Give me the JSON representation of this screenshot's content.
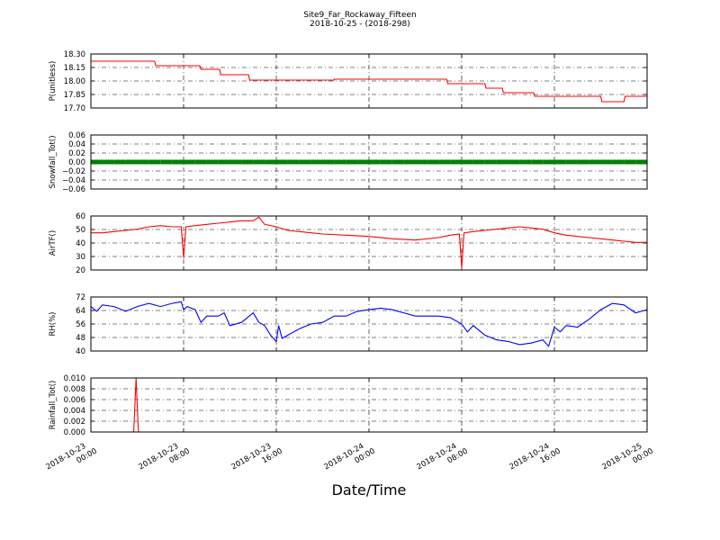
{
  "figure": {
    "title": "Site9_Far_Rockaway_Fifteen",
    "subtitle": "2018-10-25 - (2018-298)",
    "xlabel": "Date/Time"
  },
  "chart_data": [
    {
      "type": "line",
      "ylabel": "P(unitless)",
      "ylim": [
        17.7,
        18.3
      ],
      "yticks": [
        "18.30",
        "18.15",
        "18.00",
        "17.85",
        "17.70"
      ],
      "xlim": [
        0,
        48
      ],
      "xticks": [
        [
          "2018-10-23",
          "00:00"
        ],
        [
          "2018-10-23",
          "08:00"
        ],
        [
          "2018-10-23",
          "16:00"
        ],
        [
          "2018-10-24",
          "00:00"
        ],
        [
          "2018-10-24",
          "08:00"
        ],
        [
          "2018-10-24",
          "16:00"
        ],
        [
          "2018-10-25",
          "00:00"
        ]
      ],
      "grid": true,
      "color": "#ff0000",
      "x": [
        0,
        5.5,
        5.6,
        9.4,
        9.5,
        11.1,
        11.2,
        13.6,
        13.7,
        21,
        21,
        30.7,
        30.8,
        34,
        34.1,
        35.5,
        35.6,
        38.2,
        38.3,
        44.0,
        44.1,
        46.0,
        46.1,
        48
      ],
      "y": [
        18.22,
        18.22,
        18.17,
        18.17,
        18.13,
        18.13,
        18.07,
        18.07,
        18.01,
        18.01,
        18.02,
        18.02,
        17.97,
        17.97,
        17.92,
        17.92,
        17.87,
        17.87,
        17.83,
        17.83,
        17.77,
        17.77,
        17.83,
        17.83
      ]
    },
    {
      "type": "scatter",
      "ylabel": "Snowfall_Tot()",
      "ylim": [
        -0.06,
        0.06
      ],
      "yticks": [
        "0.06",
        "0.04",
        "0.02",
        "0.00",
        "−0.02",
        "−0.04",
        "−0.06"
      ],
      "xlim": [
        0,
        48
      ],
      "grid": true,
      "color": "#008000",
      "x": [
        0,
        1,
        2,
        3,
        4,
        5,
        6,
        7,
        8,
        9,
        10,
        11,
        12,
        13,
        14,
        15,
        16,
        17,
        18,
        19,
        20,
        21,
        22,
        23,
        24,
        25,
        26,
        27,
        28,
        29,
        30,
        31,
        32,
        33,
        34,
        35,
        36,
        37,
        38,
        39,
        40,
        41,
        42,
        43,
        44,
        45,
        46,
        47,
        48
      ],
      "y": [
        0,
        0,
        0,
        0,
        0,
        0,
        0,
        0,
        0,
        0,
        0,
        0,
        0,
        0,
        0,
        0,
        0,
        0,
        0,
        0,
        0,
        0,
        0,
        0,
        0,
        0,
        0,
        0,
        0,
        0,
        0,
        0,
        0,
        0,
        0,
        0,
        0,
        0,
        0,
        0,
        0,
        0,
        0,
        0,
        0,
        0,
        0,
        0,
        0
      ]
    },
    {
      "type": "line",
      "ylabel": "AirTF()",
      "ylim": [
        20,
        65
      ],
      "yticks": [
        "60",
        "50",
        "40",
        "30",
        "20"
      ],
      "xlim": [
        0,
        48
      ],
      "grid": true,
      "color": "#ff0000",
      "x": [
        0,
        1,
        2,
        3,
        4,
        5,
        6,
        7,
        7.8,
        8,
        8.2,
        9,
        10,
        11,
        12,
        13,
        14,
        14.5,
        15,
        16,
        17,
        18,
        19,
        20,
        22,
        24,
        26,
        28,
        30,
        31,
        31.8,
        32,
        32.2,
        33,
        34,
        35,
        36,
        37,
        38,
        39,
        40,
        41,
        42,
        43,
        44,
        45,
        46,
        47,
        48
      ],
      "y": [
        51,
        51,
        52,
        53,
        54,
        56,
        57,
        56,
        56,
        30,
        56,
        57,
        58,
        59,
        60,
        61,
        61,
        64,
        58,
        56,
        53,
        52,
        51,
        50,
        49,
        48,
        46,
        45,
        47,
        49,
        50,
        22,
        51,
        52,
        53,
        54,
        55,
        56,
        55,
        54,
        51,
        49,
        48,
        47,
        46,
        45,
        44,
        43,
        43
      ]
    },
    {
      "type": "line",
      "ylabel": "RH(%)",
      "ylim": [
        40,
        74
      ],
      "yticks": [
        "72",
        "64",
        "56",
        "48",
        "40"
      ],
      "xlim": [
        0,
        48
      ],
      "grid": true,
      "color": "#0000ff",
      "x": [
        0,
        0.5,
        1,
        2,
        3,
        4,
        5,
        6,
        7,
        7.8,
        8,
        8.3,
        9,
        9.5,
        10,
        11,
        11.5,
        12,
        13,
        14,
        14.5,
        15,
        15.5,
        16,
        16.2,
        16.5,
        17,
        17.5,
        18,
        19,
        20,
        21,
        22,
        23,
        24,
        25,
        26,
        27,
        28,
        29,
        30,
        31,
        32,
        32.5,
        33,
        34,
        35,
        36,
        37,
        38,
        39,
        39.5,
        40,
        40.5,
        41,
        42,
        43,
        44,
        45,
        46,
        47,
        48
      ],
      "y": [
        68,
        65,
        69,
        68,
        65,
        68,
        70,
        68,
        70,
        71,
        66,
        68,
        66,
        58,
        62,
        62,
        64,
        56,
        58,
        64,
        58,
        56,
        50,
        46,
        56,
        48,
        50,
        52,
        54,
        57,
        58,
        62,
        62,
        65,
        66,
        67,
        66,
        64,
        62,
        62,
        62,
        61,
        57,
        52,
        56,
        50,
        47,
        46,
        44,
        45,
        47,
        43,
        55,
        52,
        56,
        55,
        60,
        66,
        70,
        69,
        64,
        66
      ]
    },
    {
      "type": "line",
      "ylabel": "Rainfall_Tot()",
      "ylim": [
        0,
        0.01
      ],
      "yticks": [
        "0.010",
        "0.008",
        "0.006",
        "0.004",
        "0.002",
        "0.000"
      ],
      "xlim": [
        0,
        48
      ],
      "grid": true,
      "color": "#ff0000",
      "x": [
        0,
        3.7,
        3.9,
        4.1,
        48
      ],
      "y": [
        0,
        0,
        0.01,
        0,
        0
      ]
    }
  ]
}
